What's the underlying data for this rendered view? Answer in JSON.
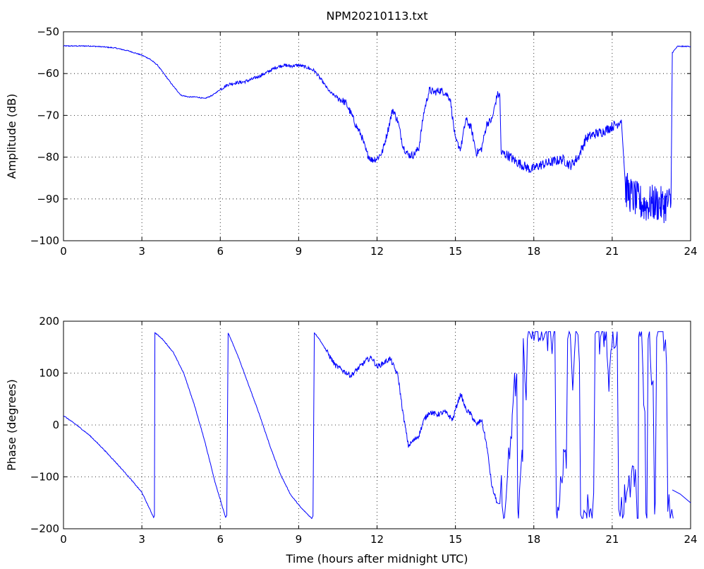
{
  "chart_data": [
    {
      "type": "line",
      "title": "NPM20210113.txt",
      "xlabel": "",
      "ylabel": "Amplitude (dB)",
      "xlim": [
        0,
        24
      ],
      "ylim": [
        -100,
        -50
      ],
      "xticks": [
        0,
        3,
        6,
        9,
        12,
        15,
        18,
        21,
        24
      ],
      "yticks": [
        -50,
        -60,
        -70,
        -80,
        -90,
        -100
      ],
      "xtick_labels": [
        "0",
        "3",
        "6",
        "9",
        "12",
        "15",
        "18",
        "21",
        "24"
      ],
      "ytick_labels": [
        "−50",
        "−60",
        "−70",
        "−80",
        "−90",
        "−100"
      ],
      "grid": true,
      "color": "#0000ff",
      "series": [
        {
          "x": [
            0,
            0.5,
            1.0,
            1.5,
            2.0,
            2.5,
            3.0,
            3.3,
            3.6,
            3.9,
            4.2,
            4.5,
            4.8,
            5.1,
            5.4,
            5.7,
            6.0,
            6.3,
            6.6,
            6.9,
            7.2,
            7.5,
            7.8,
            8.1,
            8.4,
            8.7,
            9.0,
            9.3,
            9.6,
            9.9,
            10.2,
            10.5,
            10.8,
            11.0,
            11.2,
            11.4,
            11.6,
            11.8,
            12.0,
            12.2,
            12.4,
            12.6,
            12.8,
            13.0,
            13.2,
            13.4,
            13.6,
            13.8,
            14.0,
            14.2,
            14.4,
            14.6,
            14.8,
            15.0,
            15.2,
            15.4,
            15.6,
            15.8,
            16.0,
            16.2,
            16.4,
            16.6,
            16.7,
            16.75,
            17.0,
            17.3,
            17.6,
            17.9,
            18.2,
            18.5,
            18.8,
            19.1,
            19.4,
            19.7,
            20.0,
            20.3,
            20.6,
            20.9,
            21.2,
            21.35,
            21.5,
            21.7,
            21.9,
            22.1,
            22.3,
            22.5,
            22.7,
            22.9,
            23.1,
            23.25,
            23.3,
            23.5,
            24.0
          ],
          "y": [
            -53.4,
            -53.4,
            -53.4,
            -53.6,
            -53.9,
            -54.6,
            -55.6,
            -56.5,
            -58.0,
            -60.5,
            -63.0,
            -65.2,
            -65.6,
            -65.6,
            -66.0,
            -65.2,
            -63.8,
            -62.6,
            -62.2,
            -62.0,
            -61.4,
            -60.6,
            -59.7,
            -58.6,
            -58.0,
            -58.2,
            -58.0,
            -58.5,
            -59.3,
            -61.8,
            -64.5,
            -65.8,
            -67.0,
            -69.5,
            -72.5,
            -74.8,
            -79.0,
            -80.7,
            -80.3,
            -78.8,
            -74.0,
            -68.5,
            -71.5,
            -77.5,
            -79.5,
            -79.5,
            -77.8,
            -69.0,
            -64.0,
            -64.5,
            -64.0,
            -64.5,
            -66.0,
            -76.0,
            -78.0,
            -71.0,
            -73.0,
            -79.0,
            -78.0,
            -72.0,
            -71.0,
            -65.0,
            -65.2,
            -79.0,
            -79.5,
            -81.0,
            -82.0,
            -83.0,
            -82.0,
            -81.5,
            -81.0,
            -80.5,
            -82.0,
            -80.0,
            -75.5,
            -74.5,
            -74.0,
            -73.0,
            -72.0,
            -71.0,
            -87.5,
            -89.0,
            -90.0,
            -91.0,
            -91.5,
            -91.0,
            -91.0,
            -91.5,
            -91.0,
            -91.0,
            -55.0,
            -53.5,
            -53.5
          ]
        }
      ]
    },
    {
      "type": "line",
      "title": "",
      "xlabel": "Time (hours after midnight UTC)",
      "ylabel": "Phase (degrees)",
      "xlim": [
        0,
        24
      ],
      "ylim": [
        -200,
        200
      ],
      "xticks": [
        0,
        3,
        6,
        9,
        12,
        15,
        18,
        21,
        24
      ],
      "yticks": [
        200,
        100,
        0,
        -100,
        -200
      ],
      "xtick_labels": [
        "0",
        "3",
        "6",
        "9",
        "12",
        "15",
        "18",
        "21",
        "24"
      ],
      "ytick_labels": [
        "200",
        "100",
        "0",
        "−100",
        "−200"
      ],
      "grid": true,
      "color": "#0000ff",
      "series": [
        {
          "x": [
            0,
            0.5,
            1.0,
            1.5,
            2.0,
            2.5,
            3.0,
            3.45,
            3.48,
            3.5,
            3.8,
            4.2,
            4.6,
            5.0,
            5.4,
            5.8,
            6.2,
            6.25,
            6.3,
            6.7,
            7.1,
            7.5,
            7.9,
            8.3,
            8.7,
            9.1,
            9.5,
            9.55,
            9.6,
            9.8,
            10.1,
            10.4,
            10.7,
            11.0,
            11.2,
            11.4,
            11.6,
            11.8,
            12.0,
            12.2,
            12.5,
            12.8,
            13.0,
            13.2,
            13.4,
            13.6,
            13.8,
            14.0,
            14.3,
            14.6,
            14.9,
            15.0,
            15.2,
            15.4,
            15.6,
            15.8,
            16.0,
            16.2,
            16.4,
            16.6
          ],
          "y": [
            18,
            0,
            -20,
            -45,
            -72,
            -100,
            -130,
            -178,
            -175,
            178,
            165,
            140,
            100,
            40,
            -30,
            -110,
            -178,
            -175,
            178,
            130,
            75,
            20,
            -40,
            -95,
            -135,
            -160,
            -180,
            -175,
            178,
            165,
            140,
            115,
            105,
            95,
            105,
            115,
            125,
            130,
            112,
            118,
            128,
            95,
            20,
            -40,
            -30,
            -20,
            10,
            25,
            20,
            25,
            10,
            30,
            60,
            30,
            20,
            0,
            10,
            -40,
            -120,
            -150
          ]
        }
      ],
      "noise_segments": [
        {
          "x_start": 16.6,
          "x_end": 23.3,
          "y_min": -180,
          "y_max": 180
        }
      ],
      "tail": {
        "x": [
          23.3,
          23.6,
          24.0
        ],
        "y": [
          -125,
          -133,
          -150
        ]
      }
    }
  ]
}
